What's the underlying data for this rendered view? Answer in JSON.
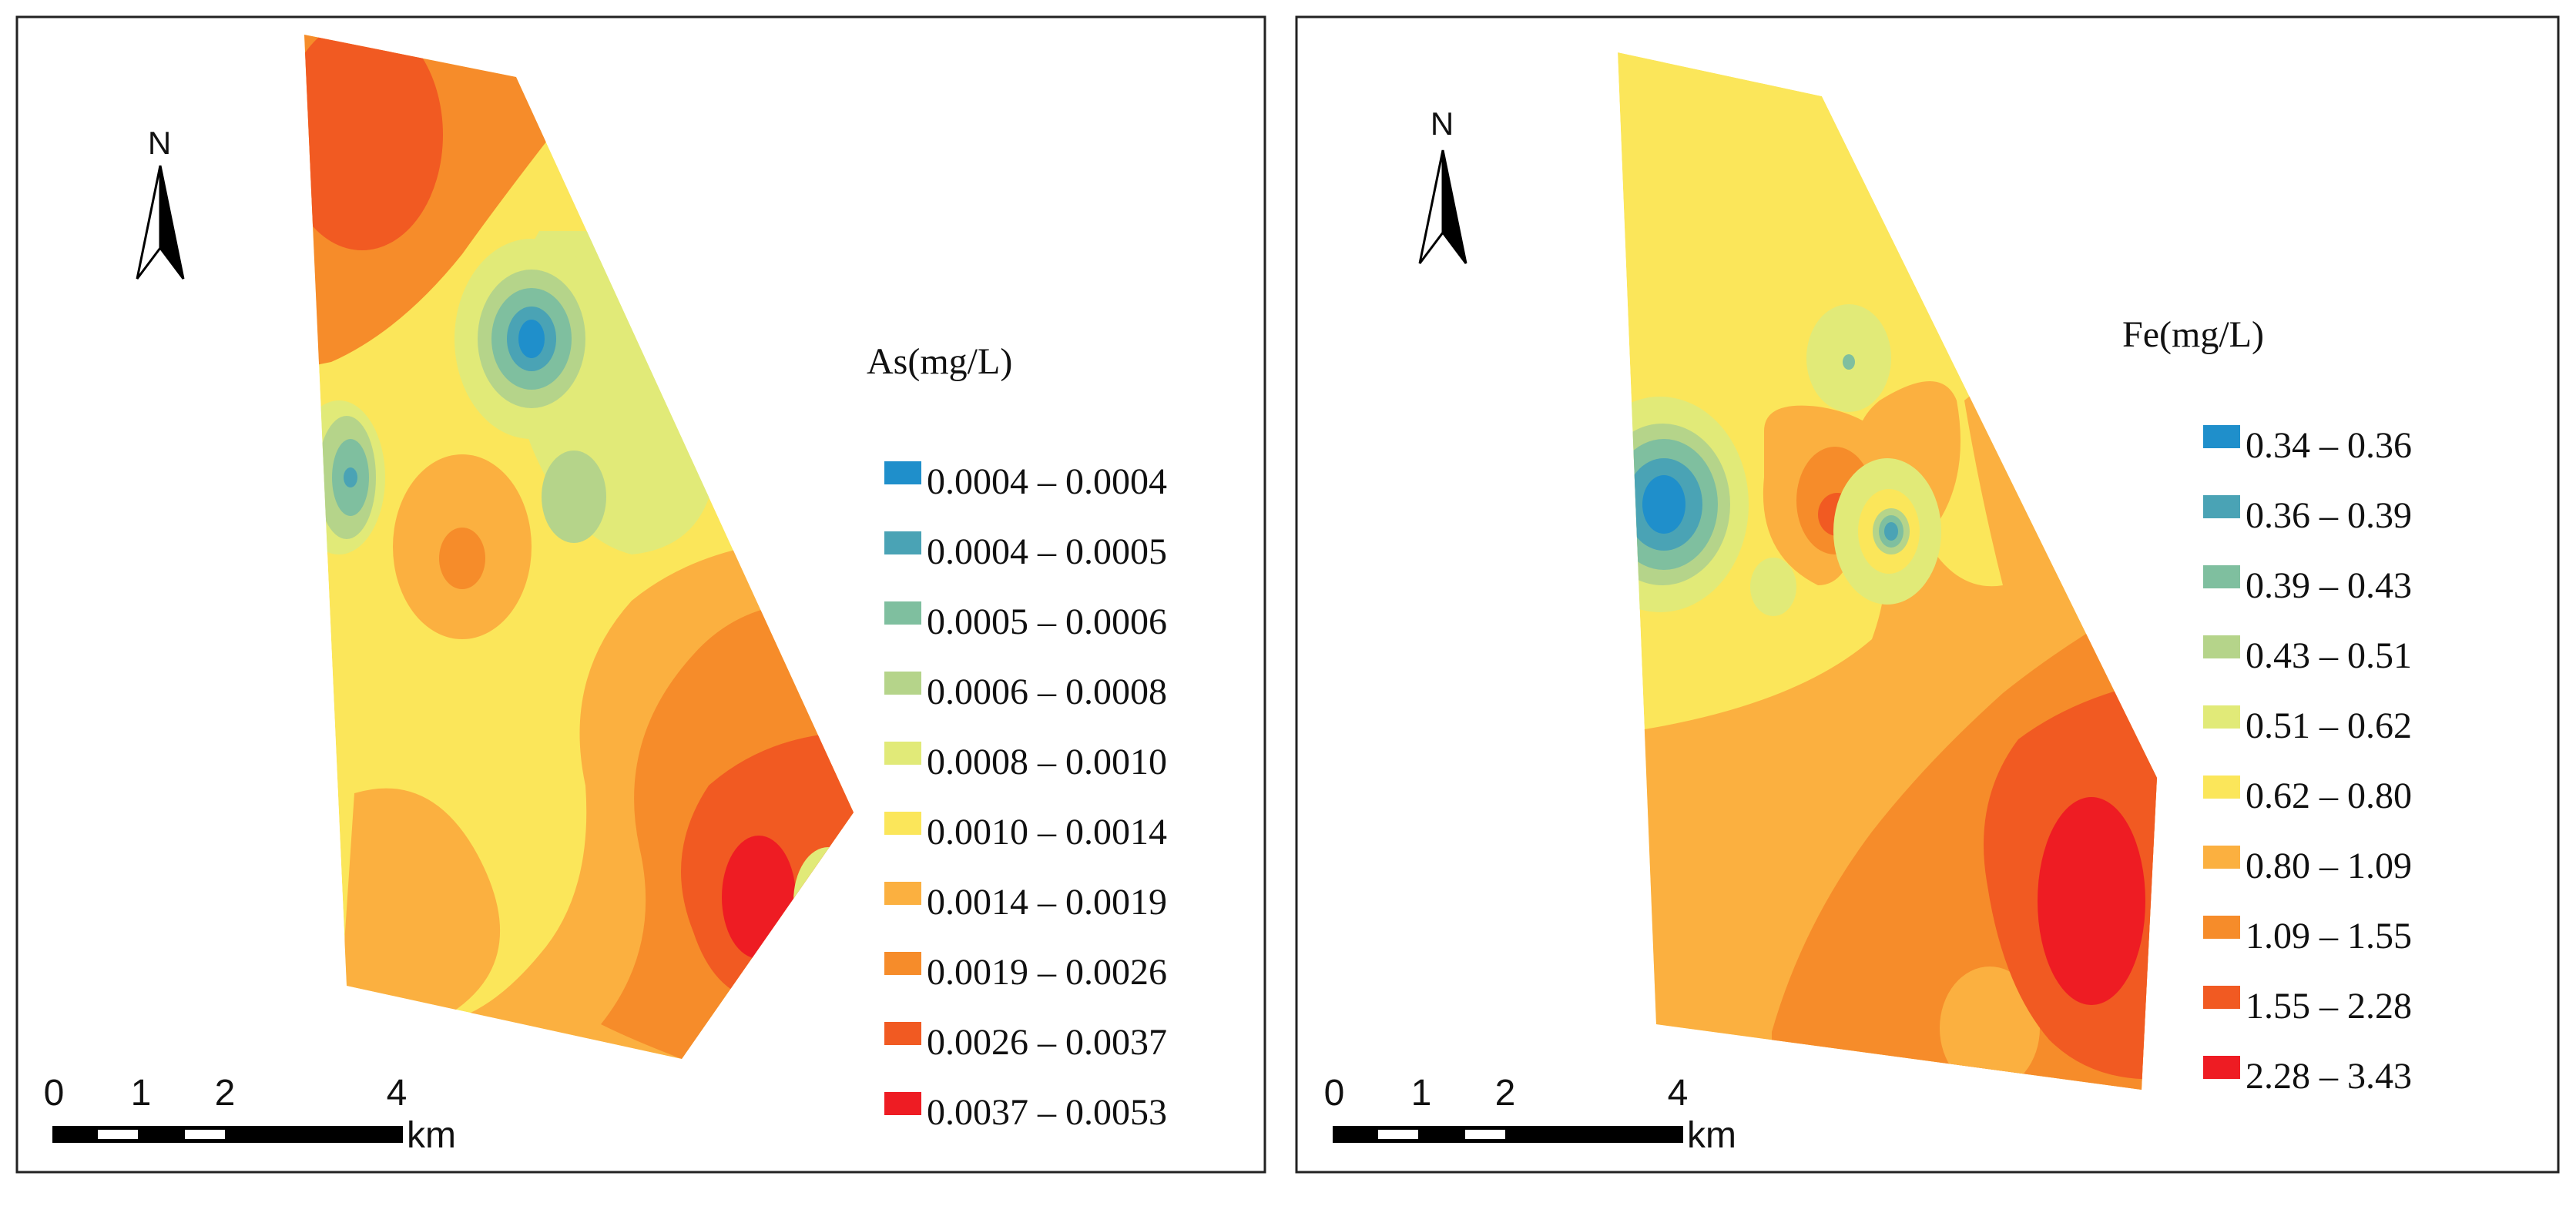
{
  "north_label": "N",
  "panels": [
    {
      "id": "as",
      "legend_title": "As(mg/L)",
      "classes": [
        {
          "label": "0.0004 – 0.0004",
          "color": "#1f8fcb"
        },
        {
          "label": "0.0004 – 0.0005",
          "color": "#4aa3b5"
        },
        {
          "label": "0.0005 – 0.0006",
          "color": "#7fbf9f"
        },
        {
          "label": "0.0006 – 0.0008",
          "color": "#b5d48a"
        },
        {
          "label": "0.0008 – 0.0010",
          "color": "#e1ea78"
        },
        {
          "label": "0.0010 – 0.0014",
          "color": "#fbe65a"
        },
        {
          "label": "0.0014 – 0.0019",
          "color": "#fbb040"
        },
        {
          "label": "0.0019 – 0.0026",
          "color": "#f68c2a"
        },
        {
          "label": "0.0026 – 0.0037",
          "color": "#f15a22"
        },
        {
          "label": "0.0037 – 0.0053",
          "color": "#ee1c23"
        }
      ],
      "scale_ticks": [
        "0",
        "1",
        "2",
        "4"
      ],
      "scale_unit": "km"
    },
    {
      "id": "fe",
      "legend_title": "Fe(mg/L)",
      "classes": [
        {
          "label": "0.34 – 0.36",
          "color": "#1f8fcb"
        },
        {
          "label": "0.36 – 0.39",
          "color": "#4aa3b5"
        },
        {
          "label": "0.39 – 0.43",
          "color": "#7fbf9f"
        },
        {
          "label": "0.43 – 0.51",
          "color": "#b5d48a"
        },
        {
          "label": "0.51 – 0.62",
          "color": "#e1ea78"
        },
        {
          "label": "0.62 – 0.80",
          "color": "#fbe65a"
        },
        {
          "label": "0.80 – 1.09",
          "color": "#fbb040"
        },
        {
          "label": "1.09 – 1.55",
          "color": "#f68c2a"
        },
        {
          "label": "1.55 – 2.28",
          "color": "#f15a22"
        },
        {
          "label": "2.28 – 3.43",
          "color": "#ee1c23"
        }
      ],
      "scale_ticks": [
        "0",
        "1",
        "2",
        "4"
      ],
      "scale_unit": "km"
    }
  ]
}
